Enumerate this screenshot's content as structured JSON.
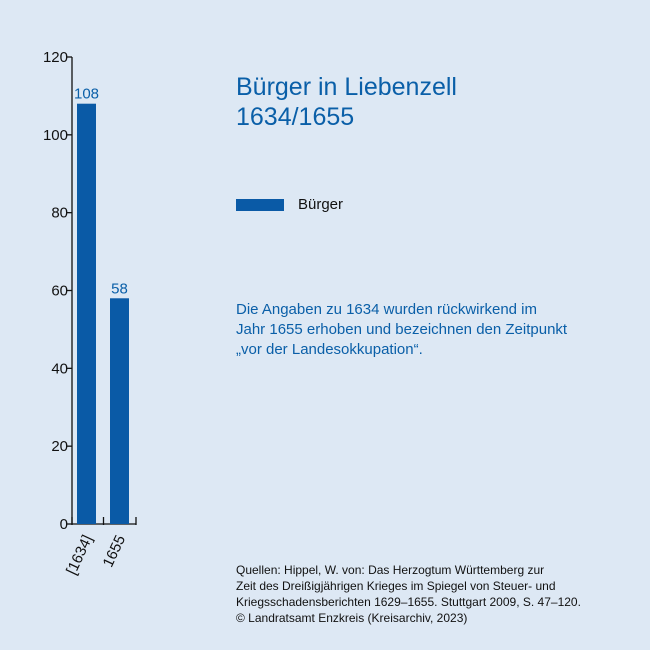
{
  "chart_data": {
    "type": "bar",
    "title": "Bürger in Liebenzell",
    "subtitle": "1634/1655",
    "categories": [
      "[1634]",
      "1655"
    ],
    "series": [
      {
        "name": "Bürger",
        "values": [
          108,
          58
        ]
      }
    ],
    "ylim": [
      0,
      120
    ],
    "yticks": [
      0,
      20,
      40,
      60,
      80,
      100,
      120
    ],
    "data_labels": [
      "108",
      "58"
    ],
    "legend": "top-right",
    "grid": false,
    "bar_color": "#0a5aa6",
    "label_color": "#0a5fa8"
  },
  "note": {
    "lines": [
      "Die Angaben zu 1634 wurden rückwirkend im",
      "Jahr 1655 erhoben und bezeichnen den Zeitpunkt",
      "„vor der Landesokkupation“."
    ]
  },
  "source": {
    "lines": [
      "Quellen: Hippel, W. von: Das Herzogtum Württemberg zur",
      "Zeit des Dreißigjährigen Krieges im Spiegel von Steuer- und",
      "Kriegsschadensberichten 1629–1655. Stuttgart 2009, S. 47–120.",
      "© Landratsamt Enzkreis (Kreisarchiv, 2023)"
    ]
  }
}
